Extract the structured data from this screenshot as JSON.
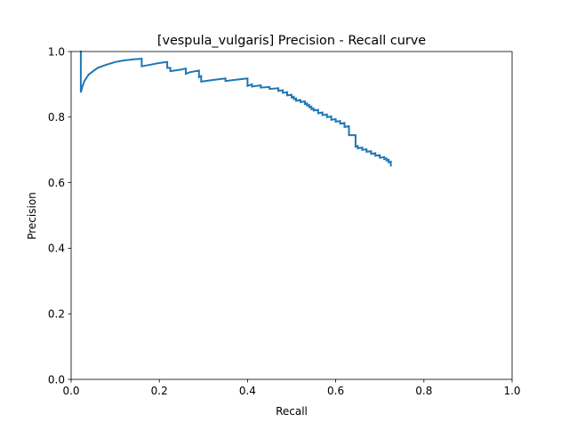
{
  "chart_data": {
    "type": "line",
    "title": "[vespula_vulgaris] Precision - Recall curve",
    "xlabel": "Recall",
    "ylabel": "Precision",
    "xlim": [
      0,
      1
    ],
    "ylim": [
      0,
      1
    ],
    "xticks": [
      0.0,
      0.2,
      0.4,
      0.6,
      0.8,
      1.0
    ],
    "xtick_labels": [
      "0.0",
      "0.2",
      "0.4",
      "0.6",
      "0.8",
      "1.0"
    ],
    "yticks": [
      0.0,
      0.2,
      0.4,
      0.6,
      0.8,
      1.0
    ],
    "ytick_labels": [
      "0.0",
      "0.2",
      "0.4",
      "0.6",
      "0.8",
      "1.0"
    ],
    "grid": false,
    "line_color": "#1f77b4",
    "series": [
      {
        "x": [
          0.022,
          0.022,
          0.025,
          0.03,
          0.04,
          0.06,
          0.08,
          0.1,
          0.12,
          0.14,
          0.16,
          0.16,
          0.18,
          0.2,
          0.218,
          0.218,
          0.225,
          0.225,
          0.25,
          0.255,
          0.26,
          0.26,
          0.27,
          0.29,
          0.29,
          0.295,
          0.295,
          0.32,
          0.35,
          0.35,
          0.38,
          0.4,
          0.4,
          0.41,
          0.41,
          0.43,
          0.43,
          0.45,
          0.45,
          0.47,
          0.47,
          0.48,
          0.48,
          0.49,
          0.49,
          0.5,
          0.5,
          0.505,
          0.505,
          0.51,
          0.51,
          0.52,
          0.52,
          0.53,
          0.53,
          0.535,
          0.535,
          0.54,
          0.54,
          0.545,
          0.545,
          0.55,
          0.55,
          0.56,
          0.56,
          0.57,
          0.57,
          0.58,
          0.58,
          0.59,
          0.59,
          0.6,
          0.6,
          0.61,
          0.61,
          0.62,
          0.62,
          0.63,
          0.63,
          0.645,
          0.645,
          0.65,
          0.65,
          0.66,
          0.66,
          0.67,
          0.67,
          0.68,
          0.68,
          0.69,
          0.69,
          0.7,
          0.7,
          0.71,
          0.71,
          0.715,
          0.715,
          0.72,
          0.72,
          0.725,
          0.725
        ],
        "y": [
          1.0,
          0.875,
          0.89,
          0.91,
          0.93,
          0.95,
          0.96,
          0.968,
          0.973,
          0.976,
          0.978,
          0.955,
          0.96,
          0.965,
          0.968,
          0.95,
          0.95,
          0.94,
          0.945,
          0.947,
          0.948,
          0.932,
          0.937,
          0.942,
          0.922,
          0.925,
          0.908,
          0.913,
          0.918,
          0.91,
          0.915,
          0.918,
          0.895,
          0.9,
          0.893,
          0.897,
          0.89,
          0.892,
          0.886,
          0.888,
          0.88,
          0.882,
          0.874,
          0.876,
          0.866,
          0.868,
          0.86,
          0.862,
          0.855,
          0.857,
          0.85,
          0.852,
          0.846,
          0.848,
          0.84,
          0.842,
          0.835,
          0.837,
          0.83,
          0.832,
          0.824,
          0.826,
          0.82,
          0.822,
          0.812,
          0.814,
          0.806,
          0.808,
          0.8,
          0.802,
          0.792,
          0.794,
          0.786,
          0.788,
          0.78,
          0.782,
          0.77,
          0.772,
          0.745,
          0.745,
          0.71,
          0.712,
          0.705,
          0.707,
          0.7,
          0.702,
          0.694,
          0.696,
          0.688,
          0.69,
          0.682,
          0.684,
          0.676,
          0.678,
          0.672,
          0.674,
          0.668,
          0.67,
          0.662,
          0.664,
          0.652
        ]
      }
    ]
  }
}
